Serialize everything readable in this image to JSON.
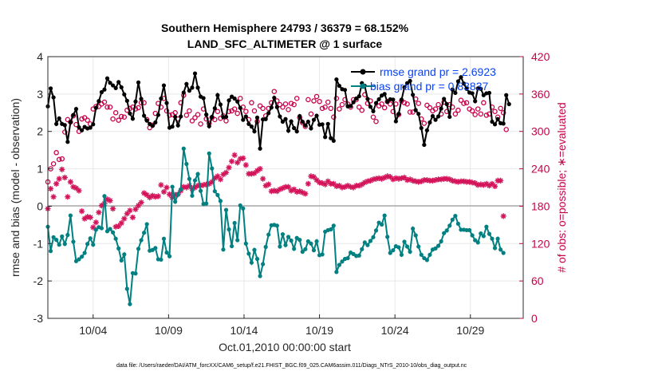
{
  "chart_data": {
    "type": "line",
    "title_line1": "Southern Hemisphere 24793 / 36379 = 68.152%",
    "title_line2": "LAND_SFC_ALTIMETER @ 1 surface",
    "xlabel": "Oct.01,2010 00:00:00 start",
    "ylabel_left": "rmse and bias (model - observation)",
    "ylabel_right": "# of obs: o=possible; ∗=evaluated",
    "xlim": [
      1.0,
      32.5
    ],
    "ylim_left": [
      -3,
      4
    ],
    "ylim_right": [
      0,
      420
    ],
    "x_ticks": [
      4,
      9,
      14,
      19,
      24,
      29
    ],
    "x_tick_labels": [
      "10/04",
      "10/09",
      "10/14",
      "10/19",
      "10/24",
      "10/29"
    ],
    "y_left_ticks": [
      -3,
      -2,
      -1,
      0,
      1,
      2,
      3,
      4
    ],
    "y_left_tick_labels": [
      "-3",
      "-2",
      "-1",
      "0",
      "1",
      "2",
      "3",
      "4"
    ],
    "y_right_ticks": [
      0,
      60,
      120,
      180,
      240,
      300,
      360,
      420
    ],
    "y_right_tick_labels": [
      "0",
      "60",
      "120",
      "180",
      "240",
      "300",
      "360",
      "420"
    ],
    "grid": true,
    "legend_position": "top-right",
    "footer": "data file: /Users/raeder/DAI/ATM_forcXX/CAM6_setup/f.e21.FHIST_BGC.f09_025.CAM6assim.011/Diags_NTrS_2010-10/obs_diag_output.nc",
    "colors": {
      "rmse": "#000000",
      "bias": "#008080",
      "possible": "#c8004a",
      "evaluated": "#d4145a",
      "zero_line": "#9a9a9a",
      "right_axis": "#c8004a",
      "legend_text": "#0a42f0"
    },
    "series": [
      {
        "name": "rmse",
        "label": "rmse grand pr = 2.6923",
        "marker": "*",
        "values": [
          2.67,
          3.15,
          2.91,
          2.2,
          2.35,
          2.2,
          2.17,
          1.72,
          2.25,
          2.44,
          2.6,
          2.11,
          2.03,
          2.12,
          2.08,
          2.1,
          2.19,
          2.63,
          2.81,
          3.05,
          3.12,
          3.42,
          3.3,
          3.23,
          3.16,
          3.32,
          3.18,
          2.99,
          2.82,
          2.48,
          2.34,
          2.8,
          3.31,
          2.87,
          2.42,
          2.29,
          2.2,
          2.15,
          2.24,
          2.44,
          2.88,
          3.23,
          2.76,
          2.1,
          2.13,
          2.39,
          2.16,
          2.4,
          3.04,
          3.27,
          3.09,
          3.17,
          3.55,
          3.17,
          2.93,
          2.89,
          2.45,
          2.14,
          2.39,
          2.62,
          2.97,
          2.72,
          2.38,
          2.39,
          2.83,
          2.93,
          2.88,
          2.8,
          2.63,
          2.31,
          2.4,
          2.2,
          2.13,
          2.0,
          2.37,
          1.54,
          2.32,
          2.33,
          2.49,
          2.64,
          2.9,
          2.65,
          2.4,
          2.26,
          2.33,
          2.02,
          2.27,
          2.09,
          2.0,
          2.41,
          2.26,
          2.16,
          2.26,
          2.08,
          2.31,
          2.42,
          2.18,
          2.19,
          1.85,
          2.2,
          1.82,
          1.75,
          3.39,
          3.22,
          3.13,
          3.11,
          2.67,
          2.68,
          2.78,
          2.88,
          2.94,
          3.29,
          3.22,
          2.87,
          2.66,
          2.54,
          2.76,
          2.86,
          2.96,
          3.0,
          2.79,
          2.86,
          2.85,
          2.27,
          2.47,
          2.85,
          3.18,
          3.29,
          3.35,
          2.98,
          2.57,
          2.47,
          2.09,
          1.64,
          2.03,
          2.24,
          2.41,
          2.31,
          2.4,
          2.61,
          2.87,
          2.73,
          2.39,
          3.12,
          3.03,
          3.34,
          3.45,
          3.28,
          3.14,
          3.04,
          3.02,
          2.81,
          3.15,
          3.14,
          2.97,
          3.02,
          3.03,
          2.26,
          2.19,
          2.33,
          2.22,
          2.21,
          2.97,
          2.73
        ],
        "x_start": 1.0,
        "x_step": 0.1875
      },
      {
        "name": "bias",
        "label": "bias grand pr = 0.83837",
        "marker": "*",
        "values": [
          -0.55,
          -1.2,
          -0.83,
          -0.9,
          -1.03,
          -0.81,
          -1.01,
          -0.77,
          -0.25,
          -0.95,
          -1.47,
          -1.42,
          -1.35,
          -1.25,
          -1.01,
          -0.86,
          -1.03,
          -0.63,
          -0.56,
          -0.59,
          0.27,
          -0.67,
          -0.61,
          -0.7,
          -0.87,
          -1.13,
          -1.45,
          -1.29,
          -2.21,
          -2.62,
          -1.79,
          -1.8,
          -1.14,
          -0.91,
          -0.71,
          -0.48,
          -1.19,
          -1.17,
          -1.12,
          -1.42,
          -1.43,
          -0.87,
          -1.24,
          -1.34,
          0.52,
          0.12,
          0.32,
          0.45,
          1.54,
          1.13,
          0.73,
          0.28,
          0.69,
          0.86,
          0.41,
          0.06,
          0.07,
          1.41,
          1.01,
          0.4,
          0.3,
          0.14,
          -1.16,
          -0.1,
          -0.62,
          -1.07,
          -0.45,
          -0.91,
          0.02,
          -0.06,
          -1.0,
          -1.27,
          -1.51,
          -1.17,
          -1.41,
          -1.87,
          -1.55,
          -1.09,
          -0.76,
          -0.51,
          -0.5,
          -0.52,
          -1.08,
          -0.75,
          -1.04,
          -0.82,
          -0.92,
          -1.14,
          -0.85,
          -0.9,
          -1.22,
          -1.15,
          -0.94,
          -1.0,
          -1.18,
          -0.94,
          -1.31,
          -1.29,
          -0.68,
          -0.64,
          -0.62,
          -0.52,
          -1.76,
          -1.57,
          -1.48,
          -1.41,
          -1.39,
          -1.24,
          -1.28,
          -1.33,
          -1.32,
          -1.15,
          -0.97,
          -1.04,
          -0.93,
          -0.83,
          -0.65,
          -0.44,
          -0.49,
          -0.25,
          -0.82,
          -1.25,
          -1.18,
          -1.07,
          -1.1,
          -1.3,
          -0.95,
          -1.08,
          -1.22,
          -0.6,
          -0.78,
          -1.08,
          -1.3,
          -1.39,
          -1.44,
          -1.3,
          -1.16,
          -1.13,
          -1.06,
          -0.94,
          -0.72,
          -0.65,
          -0.52,
          -0.36,
          -0.26,
          -0.47,
          -0.63,
          -0.63,
          -0.64,
          -0.64,
          -0.78,
          -0.91,
          -0.97,
          -0.73,
          -0.8,
          -0.55,
          -0.74,
          -0.87,
          -1.12,
          -0.87,
          -1.16,
          -1.25
        ],
        "x_start": 1.0,
        "x_step": 0.1875
      },
      {
        "name": "possible",
        "marker": "o",
        "axis": "right",
        "values": [
          219,
          240,
          248,
          266,
          255,
          256,
          299,
          319,
          315,
          325,
          311,
          300,
          320,
          322,
          318,
          312,
          336,
          340,
          340,
          344,
          347,
          339,
          339,
          320,
          330,
          318,
          324,
          323,
          334,
          337,
          339,
          336,
          338,
          346,
          346,
          319,
          306,
          310,
          329,
          345,
          339,
          353,
          333,
          326,
          327,
          330,
          320,
          346,
          358,
          326,
          333,
          317,
          322,
          327,
          312,
          336,
          320,
          313,
          322,
          319,
          332,
          321,
          325,
          317,
          332,
          333,
          336,
          329,
          353,
          339,
          332,
          319,
          346,
          333,
          316,
          341,
          337,
          325,
          337,
          346,
          364,
          349,
          343,
          339,
          344,
          335,
          345,
          343,
          353,
          322,
          314,
          308,
          351,
          328,
          349,
          356,
          348,
          337,
          339,
          347,
          337,
          323,
          353,
          336,
          343,
          351,
          344,
          339,
          351,
          351,
          339,
          334,
          359,
          345,
          349,
          323,
          316,
          341,
          344,
          338,
          348,
          344,
          332,
          344,
          327,
          349,
          346,
          344,
          331,
          331,
          352,
          345,
          320,
          313,
          342,
          338,
          333,
          336,
          343,
          328,
          347,
          332,
          343,
          339,
          328,
          334,
          350,
          345,
          346,
          336,
          333,
          327,
          336,
          328,
          346,
          326,
          328,
          339,
          332,
          323,
          337,
          330,
          303
        ],
        "x_start": 1.0,
        "x_step": 0.1875
      },
      {
        "name": "evaluated",
        "marker": "*",
        "axis": "right",
        "values": [
          176,
          208,
          195,
          216,
          224,
          239,
          226,
          195,
          219,
          211,
          209,
          205,
          172,
          160,
          163,
          162,
          146,
          154,
          170,
          181,
          184,
          191,
          189,
          176,
          147,
          148,
          153,
          160,
          168,
          173,
          162,
          175,
          181,
          186,
          201,
          198,
          194,
          197,
          195,
          196,
          214,
          203,
          210,
          199,
          194,
          198,
          199,
          205,
          211,
          210,
          213,
          208,
          210,
          213,
          213,
          214,
          215,
          216,
          219,
          225,
          228,
          223,
          231,
          234,
          242,
          252,
          262,
          250,
          256,
          257,
          246,
          232,
          232,
          233,
          237,
          240,
          224,
          213,
          215,
          204,
          205,
          204,
          207,
          209,
          211,
          211,
          205,
          207,
          203,
          204,
          202,
          200,
          216,
          228,
          227,
          222,
          218,
          217,
          215,
          220,
          216,
          216,
          212,
          213,
          210,
          211,
          213,
          211,
          210,
          213,
          213,
          215,
          218,
          220,
          221,
          223,
          224,
          225,
          224,
          226,
          228,
          227,
          223,
          225,
          224,
          225,
          226,
          222,
          223,
          221,
          220,
          219,
          220,
          222,
          222,
          221,
          221,
          222,
          223,
          223,
          224,
          224,
          223,
          221,
          220,
          219,
          220,
          220,
          219,
          219,
          218,
          217,
          214,
          215,
          214,
          216,
          213,
          216,
          212,
          221,
          221,
          164
        ],
        "x_start": 1.0,
        "x_step": 0.1875
      }
    ]
  }
}
